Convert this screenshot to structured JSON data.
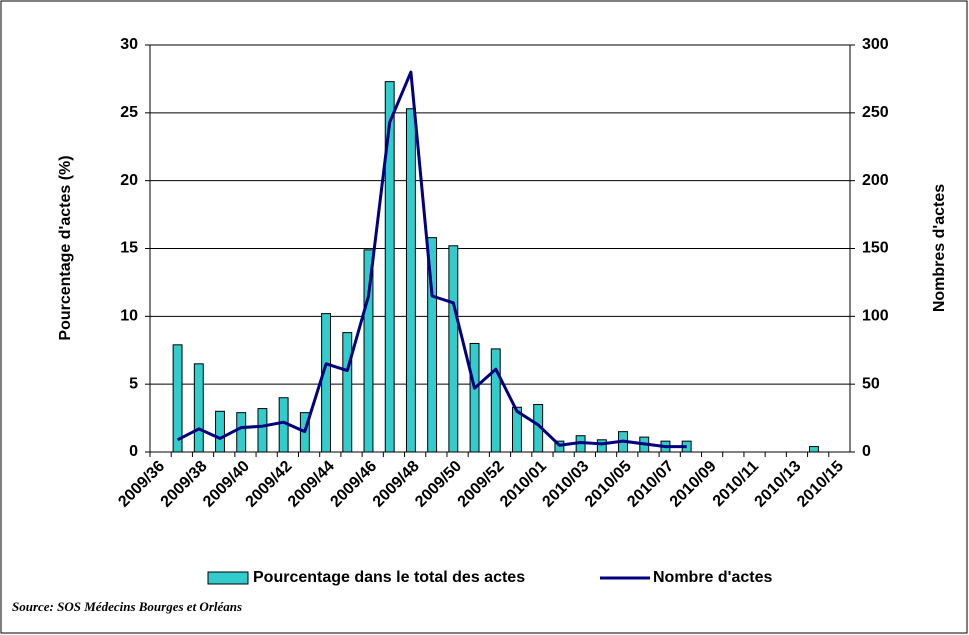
{
  "chart_data": {
    "type": "bar",
    "categories": [
      "2009/36",
      null,
      "2009/38",
      null,
      "2009/40",
      null,
      "2009/42",
      null,
      "2009/44",
      null,
      "2009/46",
      null,
      "2009/48",
      null,
      "2009/50",
      null,
      "2009/52",
      null,
      "2010/01",
      null,
      "2010/03",
      null,
      "2010/05",
      null,
      "2010/07",
      null,
      "2010/09",
      null,
      "2010/11",
      null,
      "2010/13",
      null,
      "2010/15"
    ],
    "series": [
      {
        "name": "Pourcentage dans le total des actes",
        "type": "bar",
        "color": "#33cccc",
        "values": [
          null,
          7.9,
          6.5,
          3.0,
          2.9,
          3.2,
          4.0,
          2.9,
          10.2,
          8.8,
          14.9,
          27.3,
          25.3,
          15.8,
          15.2,
          8.0,
          7.6,
          3.3,
          3.5,
          0.8,
          1.2,
          0.9,
          1.5,
          1.1,
          0.8,
          0.8,
          null,
          null,
          null,
          null,
          null,
          0.4,
          null
        ]
      },
      {
        "name": "Nombre d'actes",
        "type": "line",
        "color": "#000080",
        "axis": "y2",
        "values": [
          null,
          9,
          17,
          10,
          18,
          19,
          22,
          15,
          65,
          60,
          115,
          243,
          280,
          115,
          110,
          47,
          61,
          30,
          20,
          5,
          7,
          6,
          8,
          6,
          4,
          4,
          null,
          null,
          null,
          null,
          null,
          null,
          null
        ]
      }
    ],
    "y_label": "Pourcentage d'actes (%)",
    "y2_label": "Nombres d'actes",
    "ylim": [
      0,
      30
    ],
    "yticks": [
      0,
      5,
      10,
      15,
      20,
      25,
      30
    ],
    "y2lim": [
      0,
      300
    ],
    "y2ticks": [
      0,
      50,
      100,
      150,
      200,
      250,
      300
    ],
    "grid": true,
    "legend": "bottom",
    "source": "Source: SOS Médecins Bourges et Orléans"
  }
}
